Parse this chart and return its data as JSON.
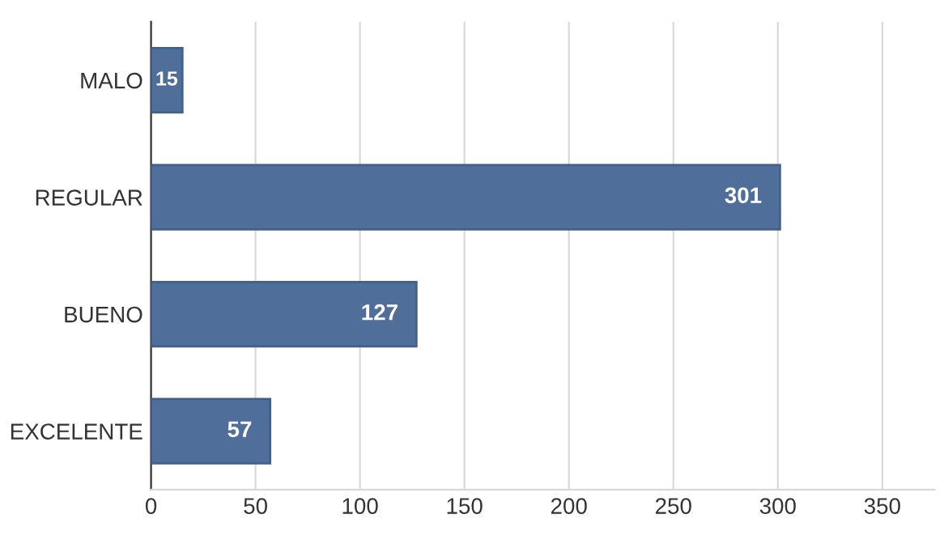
{
  "chart_data": {
    "type": "bar",
    "orientation": "horizontal",
    "categories": [
      "MALO",
      "REGULAR",
      "BUENO",
      "EXCELENTE"
    ],
    "values": [
      15,
      301,
      127,
      57
    ],
    "color": "#4f6f9a",
    "data_labels": true,
    "xlim": [
      0,
      375
    ],
    "xticks": [
      0,
      50,
      100,
      150,
      200,
      250,
      300,
      350
    ],
    "grid": "x",
    "legend": false
  }
}
